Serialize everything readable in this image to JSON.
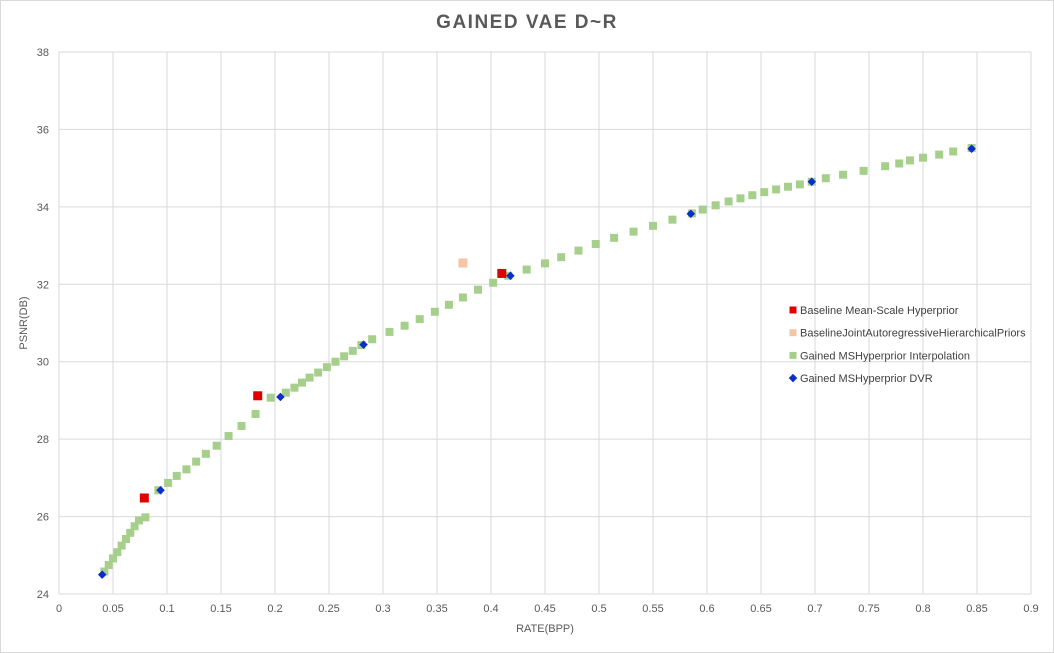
{
  "chart_data": {
    "type": "scatter",
    "title": "GAINED VAE D~R",
    "xlabel": "RATE(BPP)",
    "ylabel": "PSNR(DB)",
    "xlim": [
      0,
      0.9
    ],
    "ylim": [
      24,
      38
    ],
    "x_ticks": [
      0,
      0.05,
      0.1,
      0.15,
      0.2,
      0.25,
      0.3,
      0.35,
      0.4,
      0.45,
      0.5,
      0.55,
      0.6,
      0.65,
      0.7,
      0.75,
      0.8,
      0.85,
      0.9
    ],
    "x_tick_labels": [
      "0",
      "0.05",
      "0.1",
      "0.15",
      "0.2",
      "0.25",
      "0.3",
      "0.35",
      "0.4",
      "0.45",
      "0.5",
      "0.55",
      "0.6",
      "0.65",
      "0.7",
      "0.75",
      "0.8",
      "0.85",
      "0.9"
    ],
    "y_ticks": [
      24,
      26,
      28,
      30,
      32,
      34,
      36,
      38
    ],
    "y_tick_labels": [
      "24",
      "26",
      "28",
      "30",
      "32",
      "34",
      "36",
      "38"
    ],
    "grid": true,
    "legend_position": "right",
    "series": [
      {
        "name": "Baseline Mean-Scale Hyperprior",
        "marker": "square",
        "color": "#e00000",
        "x": [
          0.079,
          0.184,
          0.41
        ],
        "y": [
          26.48,
          29.12,
          32.28
        ]
      },
      {
        "name": "BaselineJointAutoregressiveHierarchicalPriors",
        "marker": "square",
        "color": "#f4c6a6",
        "x": [
          0.374
        ],
        "y": [
          32.55
        ]
      },
      {
        "name": "Gained MSHyperprior Interpolation",
        "marker": "square",
        "color": "#a6cf8c",
        "x": [
          0.042,
          0.046,
          0.05,
          0.054,
          0.058,
          0.062,
          0.066,
          0.07,
          0.074,
          0.08,
          0.092,
          0.101,
          0.109,
          0.118,
          0.127,
          0.136,
          0.146,
          0.157,
          0.169,
          0.182,
          0.196,
          0.21,
          0.218,
          0.225,
          0.232,
          0.24,
          0.248,
          0.256,
          0.264,
          0.272,
          0.28,
          0.29,
          0.306,
          0.32,
          0.334,
          0.348,
          0.361,
          0.374,
          0.388,
          0.402,
          0.416,
          0.433,
          0.45,
          0.465,
          0.481,
          0.497,
          0.514,
          0.532,
          0.55,
          0.568,
          0.586,
          0.596,
          0.608,
          0.62,
          0.631,
          0.642,
          0.653,
          0.664,
          0.675,
          0.686,
          0.697,
          0.71,
          0.726,
          0.745,
          0.765,
          0.778,
          0.788,
          0.8,
          0.815,
          0.828,
          0.845
        ],
        "y": [
          24.58,
          24.75,
          24.92,
          25.08,
          25.25,
          25.42,
          25.58,
          25.75,
          25.9,
          25.98,
          26.68,
          26.87,
          27.05,
          27.22,
          27.42,
          27.62,
          27.83,
          28.08,
          28.34,
          28.65,
          29.07,
          29.2,
          29.33,
          29.46,
          29.59,
          29.72,
          29.86,
          30.0,
          30.14,
          30.28,
          30.43,
          30.58,
          30.77,
          30.93,
          31.1,
          31.29,
          31.47,
          31.66,
          31.86,
          32.04,
          32.22,
          32.38,
          32.54,
          32.7,
          32.87,
          33.04,
          33.2,
          33.36,
          33.51,
          33.67,
          33.83,
          33.93,
          34.04,
          34.14,
          34.22,
          34.3,
          34.38,
          34.45,
          34.52,
          34.58,
          34.65,
          34.74,
          34.83,
          34.93,
          35.05,
          35.12,
          35.2,
          35.27,
          35.35,
          35.43,
          35.52
        ]
      },
      {
        "name": "Gained MSHyperprior DVR",
        "marker": "diamond",
        "color": "#0a2dcc",
        "x": [
          0.04,
          0.094,
          0.205,
          0.282,
          0.418,
          0.585,
          0.697,
          0.845
        ],
        "y": [
          24.5,
          26.68,
          29.09,
          30.44,
          32.22,
          33.82,
          34.65,
          35.5
        ]
      }
    ]
  }
}
